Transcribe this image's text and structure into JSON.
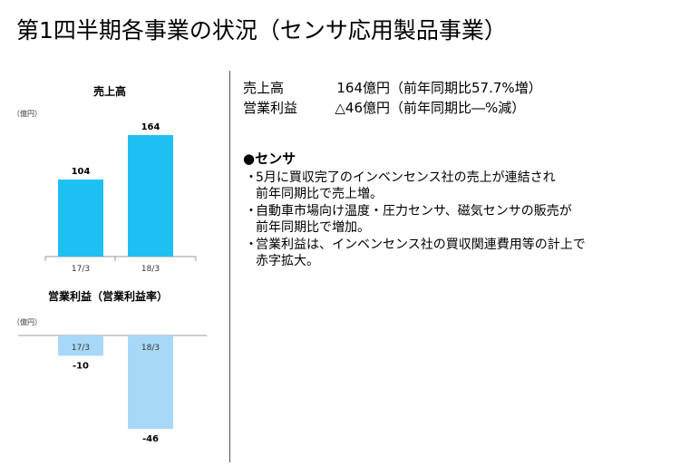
{
  "title": "第1四半期各事業の状況（センサ応用製品事業）",
  "sales_chart": {
    "title": "売上高",
    "unit": "（億円）"
  },
  "profit_chart": {
    "title": "営業利益（営業利益率）",
    "unit": "（億円）"
  },
  "chart_data": [
    {
      "type": "bar",
      "title": "売上高",
      "ylabel": "（億円）",
      "categories": [
        "17/3",
        "18/3"
      ],
      "values": [
        104,
        164
      ],
      "ylim": [
        0,
        180
      ],
      "color": "#1ec0f2"
    },
    {
      "type": "bar",
      "title": "営業利益（営業利益率）",
      "ylabel": "（億円）",
      "categories": [
        "17/3",
        "18/3"
      ],
      "values": [
        -10,
        -46
      ],
      "ylim": [
        -50,
        0
      ],
      "color": "#a8d8f8"
    }
  ],
  "summary": {
    "sales_label": "売上高",
    "sales_value": "164億円",
    "sales_note": "（前年同期比57.7%増）",
    "profit_label": "営業利益",
    "profit_value": "△46億円",
    "profit_note": "（前年同期比―%減）"
  },
  "section": {
    "heading": "●センサ",
    "bullet_mark": "・",
    "bullets": [
      [
        "5月に買収完了のインベンセンス社の売上が連結され",
        "前年同期比で売上増。"
      ],
      [
        "自動車市場向け温度・圧力センサ、磁気センサの販売が",
        "前年同期比で増加。"
      ],
      [
        "営業利益は、インベンセンス社の買収関連費用等の計上で",
        "赤字拡大。"
      ]
    ]
  }
}
